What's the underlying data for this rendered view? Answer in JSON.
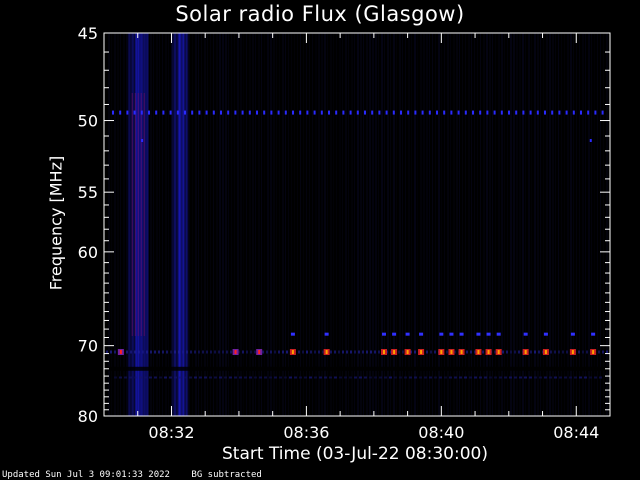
{
  "chart_data": {
    "type": "heatmap",
    "title": "Solar radio Flux (Glasgow)",
    "xlabel": "Start Time (03-Jul-22 08:30:00)",
    "ylabel": "Frequency [MHz]",
    "x_range_minutes": [
      0,
      15
    ],
    "x_ticks": [
      {
        "minute": 2,
        "label": "08:32"
      },
      {
        "minute": 6,
        "label": "08:36"
      },
      {
        "minute": 10,
        "label": "08:40"
      },
      {
        "minute": 14,
        "label": "08:44"
      }
    ],
    "y_range_mhz": [
      45,
      80
    ],
    "y_ticks": [
      {
        "mhz": 45,
        "label": "45"
      },
      {
        "mhz": 50,
        "label": "50"
      },
      {
        "mhz": 55,
        "label": "55"
      },
      {
        "mhz": 60,
        "label": "60"
      },
      {
        "mhz": 70,
        "label": "70"
      },
      {
        "mhz": 80,
        "label": "80"
      }
    ],
    "features": {
      "broadband_bursts_minutes": [
        [
          0.7,
          1.3
        ],
        [
          2.0,
          2.5
        ]
      ],
      "narrowband_line_mhz": 49.5,
      "interference_line_mhz": 70.8,
      "interference_hot_minutes": [
        0.5,
        3.9,
        4.6,
        5.6,
        6.6,
        8.3,
        8.6,
        9.0,
        9.4,
        10.0,
        10.3,
        10.6,
        11.1,
        11.4,
        11.7,
        12.5,
        13.1,
        13.9,
        14.5
      ]
    },
    "colors": {
      "background": "#000000",
      "low": "#0a0a40",
      "mid": "#2020ff",
      "high": "#ff2020",
      "peak": "#ffa000"
    }
  },
  "footer": {
    "updated": "Updated Sun Jul  3 09:01:33 2022",
    "note": "BG subtracted"
  }
}
